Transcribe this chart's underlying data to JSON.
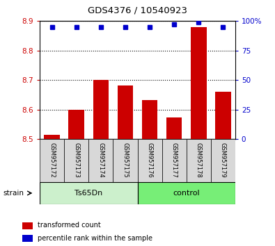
{
  "title": "GDS4376 / 10540923",
  "samples": [
    "GSM957172",
    "GSM957173",
    "GSM957174",
    "GSM957175",
    "GSM957176",
    "GSM957177",
    "GSM957178",
    "GSM957179"
  ],
  "red_values": [
    8.515,
    8.598,
    8.7,
    8.682,
    8.632,
    8.572,
    8.88,
    8.66
  ],
  "blue_values": [
    95,
    95,
    95,
    95,
    95,
    97,
    99,
    95
  ],
  "ylim_left": [
    8.5,
    8.9
  ],
  "ylim_right": [
    0,
    100
  ],
  "yticks_left": [
    8.5,
    8.6,
    8.7,
    8.8,
    8.9
  ],
  "yticks_right": [
    0,
    25,
    50,
    75,
    100
  ],
  "ytick_labels_right": [
    "0",
    "25",
    "50",
    "75",
    "100%"
  ],
  "group1_label": "Ts65Dn",
  "group2_label": "control",
  "bar_color": "#cc0000",
  "dot_color": "#0000cc",
  "group1_color": "#ccf0cc",
  "group2_color": "#77ee77",
  "label_red": "transformed count",
  "label_blue": "percentile rank within the sample",
  "strain_label": "strain",
  "bar_width": 0.65,
  "base_value": 8.5
}
